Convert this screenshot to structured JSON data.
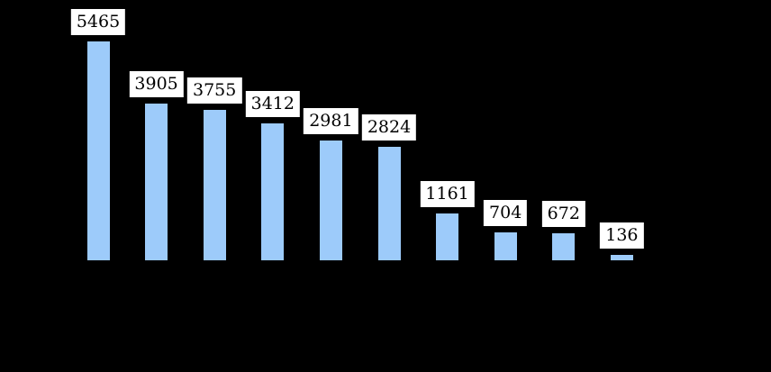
{
  "chart_data": {
    "type": "bar",
    "values": [
      5465,
      3905,
      3755,
      3412,
      2981,
      2824,
      1161,
      704,
      672,
      136
    ],
    "data_labels": [
      "5465",
      "3905",
      "3755",
      "3412",
      "2981",
      "2824",
      "1161",
      "704",
      "672",
      "136"
    ],
    "title": "",
    "xlabel": "",
    "ylabel": "",
    "ylim": [
      0,
      6000
    ],
    "grid": false,
    "legend": false,
    "sorted": "descending",
    "colors": {
      "background": "#000000",
      "bar_fill": "#9DCBFA",
      "label_box_bg": "#FFFFFF",
      "label_text": "#000000"
    }
  }
}
